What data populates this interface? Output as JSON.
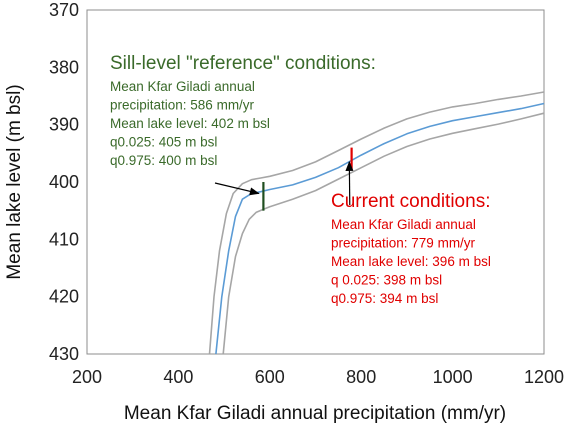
{
  "chart_data": {
    "type": "line",
    "xlabel": "Mean Kfar Giladi annual precipitation  (mm/yr)",
    "ylabel": "Mean lake level (m bsl)",
    "xlim": [
      200,
      1200
    ],
    "ylim": [
      370,
      430
    ],
    "y_inverted": true,
    "x_ticks": [
      200,
      400,
      600,
      800,
      1000,
      1200
    ],
    "y_ticks": [
      370,
      380,
      390,
      400,
      410,
      420,
      430
    ],
    "grid": false,
    "series": [
      {
        "role": "mean",
        "color": "#5b9bd5",
        "x": [
          482,
          495,
          510,
          525,
          540,
          560,
          580,
          600,
          650,
          700,
          750,
          800,
          850,
          900,
          950,
          1000,
          1050,
          1100,
          1150,
          1200
        ],
        "y": [
          430,
          420,
          412,
          406,
          403,
          402,
          401.7,
          401.3,
          400.5,
          399.2,
          397.5,
          395.3,
          393.3,
          391.6,
          390.3,
          389.3,
          388.6,
          387.9,
          387.2,
          386.3
        ]
      },
      {
        "role": "q0.025",
        "color": "#a6a6a6",
        "x": [
          498,
          510,
          525,
          540,
          555,
          570,
          585,
          600,
          650,
          700,
          750,
          800,
          850,
          900,
          950,
          1000,
          1050,
          1100,
          1150,
          1200
        ],
        "y": [
          430,
          420,
          413,
          409,
          406.5,
          405.3,
          404.8,
          404.3,
          403,
          401.5,
          399.5,
          397.5,
          395.5,
          393.8,
          392.5,
          391.5,
          390.7,
          389.9,
          389,
          388
        ]
      },
      {
        "role": "q0.975",
        "color": "#a6a6a6",
        "x": [
          468,
          478,
          490,
          505,
          520,
          540,
          560,
          580,
          600,
          650,
          700,
          750,
          800,
          850,
          900,
          950,
          1000,
          1050,
          1100,
          1150,
          1200
        ],
        "y": [
          430,
          420,
          412,
          405.5,
          402,
          400.3,
          399.6,
          399.3,
          399,
          398,
          396.5,
          394.5,
          392.5,
          390.6,
          389,
          387.8,
          386.9,
          386.3,
          385.6,
          385,
          384.3
        ]
      }
    ],
    "markers": [
      {
        "name": "sill-level-reference-bar",
        "x": 586,
        "y_top": 400,
        "y_bottom": 405,
        "color": "#1f4e1f"
      },
      {
        "name": "current-conditions-bar",
        "x": 779,
        "y_top": 394,
        "y_bottom": 398,
        "color": "#e00000"
      }
    ],
    "annotations": [
      {
        "name": "sill-level-reference",
        "color": "#3a6a2a",
        "title": "Sill-level \"reference\" conditions:",
        "lines": [
          "Mean Kfar Giladi annual",
          "precipitation: 586 mm/yr",
          "Mean lake level: 402 m bsl",
          "q0.025: 405 m bsl",
          "q0.975:  400 m bsl"
        ],
        "arrow_to": {
          "x": 576,
          "y": 402
        }
      },
      {
        "name": "current-conditions",
        "color": "#e00000",
        "title": "Current conditions:",
        "lines": [
          "Mean Kfar Giladi annual",
          "precipitation: 779 mm/yr",
          "Mean lake level: 396 m bsl",
          "q 0.025: 398 m bsl",
          "q0.975:  394 m bsl"
        ],
        "arrow_to": {
          "x": 774,
          "y": 396.5
        }
      }
    ]
  }
}
